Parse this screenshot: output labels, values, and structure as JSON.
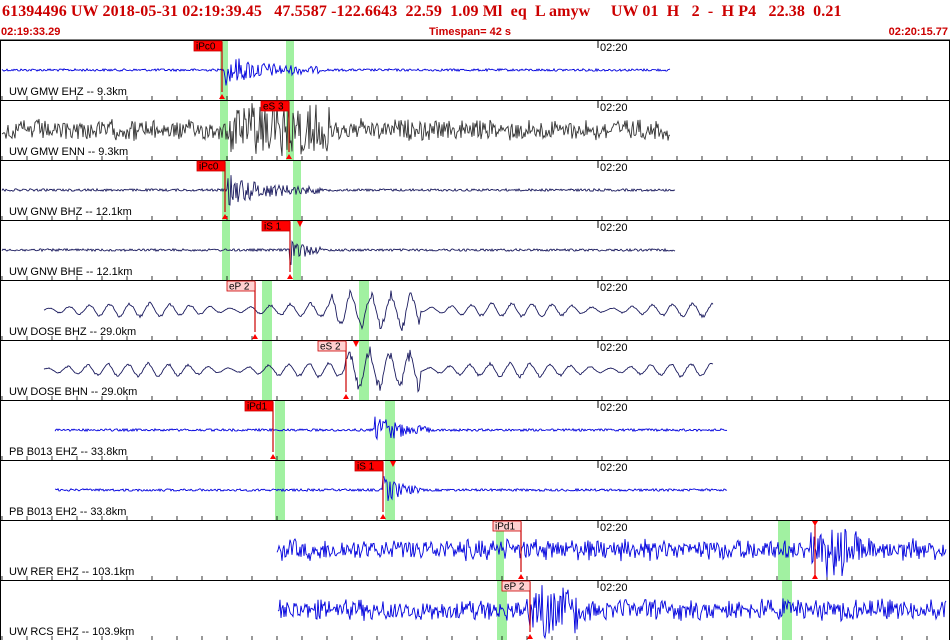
{
  "header": {
    "title": "61394496 UW 2018-05-31 02:19:39.45   47.5587 -122.6643  22.59  1.09 Ml  eq  L amyw     UW 01  H   2  -  H P4   22.38  0.21",
    "start_time": "02:19:33.29",
    "timespan": "Timespan=  42 s",
    "end_time": "02:20:15.77"
  },
  "colors": {
    "header_text": "#cc0000",
    "pick_fill": "#ff0000",
    "pick_fill_light": "#ffd0d0",
    "pick_line": "#cc0000",
    "marker": "#90ee90",
    "trace_blue": "#0000dd",
    "trace_dark": "#1a1a5e",
    "trace_gray": "#333333",
    "border": "#000000"
  },
  "time_label": "02:20",
  "channels": [
    {
      "label": "UW GMW EHZ -- 9.3km",
      "color": "blue",
      "style": "quiet",
      "pick": {
        "text": "iPc0",
        "style": "solid"
      }
    },
    {
      "label": "UW GMW ENN -- 9.3km",
      "color": "gray",
      "style": "noisy",
      "pick": {
        "text": "eS 3",
        "style": "solid"
      }
    },
    {
      "label": "UW GNW BHZ -- 12.1km",
      "color": "dark",
      "style": "quiet",
      "pick": {
        "text": "iPc0",
        "style": "solid"
      }
    },
    {
      "label": "UW GNW BHE -- 12.1km",
      "color": "dark",
      "style": "quiet",
      "pick": {
        "text": "iS 1",
        "style": "solid"
      }
    },
    {
      "label": "UW DOSE BHZ -- 29.0km",
      "color": "dark",
      "style": "wave",
      "pick": {
        "text": "eP 2",
        "style": "light"
      }
    },
    {
      "label": "UW DOSE BHN -- 29.0km",
      "color": "dark",
      "style": "wave",
      "pick": {
        "text": "eS 2",
        "style": "light"
      }
    },
    {
      "label": "PB B013 EHZ -- 33.8km",
      "color": "blue",
      "style": "quiet",
      "pick": {
        "text": "iPd1",
        "style": "solid"
      }
    },
    {
      "label": "PB B013 EH2 -- 33.8km",
      "color": "blue",
      "style": "quiet",
      "pick": {
        "text": "iS 1",
        "style": "solid"
      }
    },
    {
      "label": "UW RER EHZ -- 103.1km",
      "color": "blue",
      "style": "noisy",
      "pick": {
        "text": "iPd1",
        "style": "light"
      }
    },
    {
      "label": "UW RCS EHZ -- 103.9km",
      "color": "blue",
      "style": "noisy",
      "pick": {
        "text": "eP 2",
        "style": "light"
      }
    }
  ]
}
